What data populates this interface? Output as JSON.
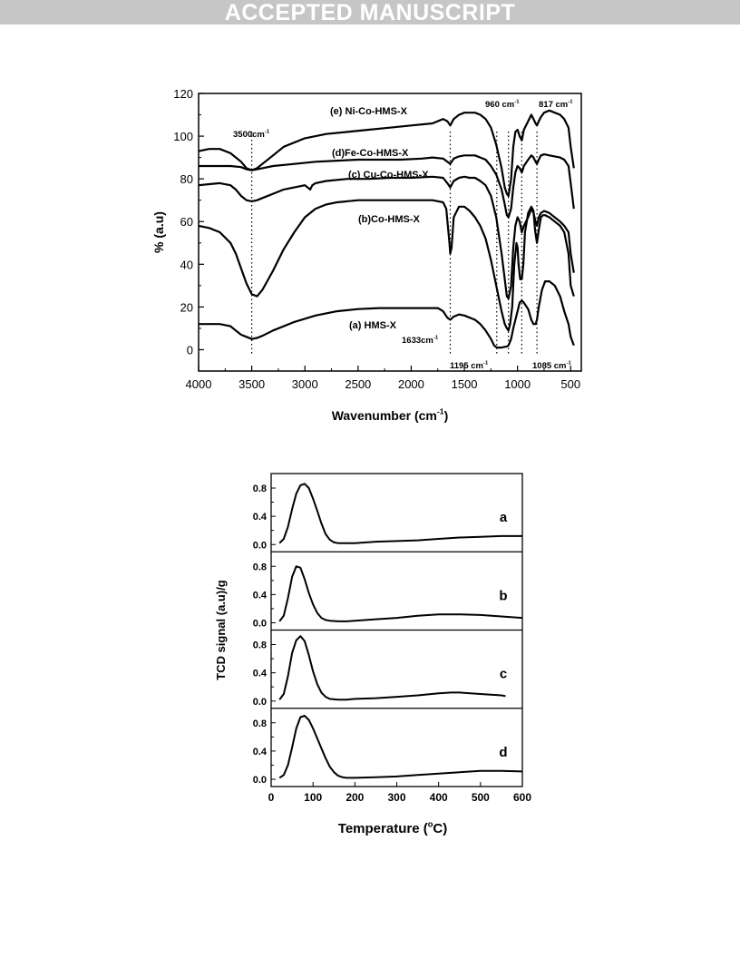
{
  "header": {
    "banner": "ACCEPTED MANUSCRIPT"
  },
  "chart_data": [
    {
      "type": "line",
      "xlabel": "Wavenumber (cm",
      "xlabel_sup": "-1",
      "xlabel_end": ")",
      "ylabel": "% (a.u)",
      "xlim": [
        4000,
        400
      ],
      "ylim": [
        -10,
        120
      ],
      "xticks": [
        4000,
        3500,
        3000,
        2500,
        2000,
        1500,
        1000,
        500
      ],
      "yticks": [
        0,
        20,
        40,
        60,
        80,
        100,
        120
      ],
      "grid": false,
      "series": [
        {
          "name": "(a) HMS-X",
          "x": [
            4000,
            3800,
            3700,
            3650,
            3600,
            3550,
            3500,
            3450,
            3400,
            3300,
            3100,
            2900,
            2700,
            2500,
            2300,
            2100,
            1900,
            1750,
            1700,
            1660,
            1633,
            1600,
            1550,
            1500,
            1400,
            1350,
            1300,
            1250,
            1220,
            1195,
            1150,
            1100,
            1085,
            1060,
            1040,
            1000,
            980,
            960,
            940,
            900,
            870,
            850,
            830,
            817,
            800,
            770,
            740,
            700,
            650,
            600,
            560,
            520,
            500,
            470
          ],
          "y": [
            12,
            12,
            11,
            9,
            7,
            6,
            5,
            5.5,
            6.5,
            9,
            13,
            16,
            18,
            19,
            19.5,
            19.5,
            19.5,
            19.5,
            18,
            15,
            14,
            15.5,
            16.5,
            16,
            14,
            12,
            9,
            5,
            2,
            1,
            1,
            1.5,
            2,
            5,
            10,
            18,
            22,
            23,
            22,
            19,
            14,
            12,
            12,
            14,
            20,
            28,
            32,
            32,
            30,
            25,
            18,
            12,
            6,
            2
          ]
        },
        {
          "name": "(b)Co-HMS-X",
          "x": [
            4000,
            3900,
            3800,
            3700,
            3650,
            3600,
            3550,
            3500,
            3450,
            3400,
            3300,
            3200,
            3100,
            3000,
            2900,
            2800,
            2700,
            2500,
            2300,
            2000,
            1800,
            1700,
            1670,
            1640,
            1633,
            1620,
            1600,
            1550,
            1500,
            1450,
            1400,
            1350,
            1300,
            1250,
            1200,
            1150,
            1120,
            1100,
            1085,
            1070,
            1050,
            1030,
            1010,
            1000,
            990,
            975,
            960,
            945,
            930,
            900,
            870,
            850,
            835,
            817,
            800,
            780,
            760,
            740,
            700,
            650,
            600,
            560,
            520,
            500,
            470
          ],
          "y": [
            58,
            57,
            55,
            50,
            45,
            38,
            31,
            26,
            25,
            28,
            37,
            47,
            55,
            62,
            66,
            68,
            69,
            70,
            70,
            70,
            70,
            69,
            66,
            50,
            45,
            48,
            62,
            67,
            67,
            65,
            62,
            58,
            52,
            42,
            30,
            18,
            12,
            10,
            9,
            12,
            20,
            40,
            50,
            48,
            40,
            33,
            33,
            40,
            55,
            64,
            67,
            65,
            56,
            50,
            56,
            62,
            63,
            63,
            62,
            60,
            58,
            55,
            45,
            30,
            25
          ]
        },
        {
          "name": "(c) Cu-Co-HMS-X",
          "x": [
            4000,
            3900,
            3800,
            3700,
            3650,
            3600,
            3550,
            3500,
            3450,
            3400,
            3300,
            3200,
            3000,
            2950,
            2930,
            2900,
            2800,
            2600,
            2400,
            2200,
            2000,
            1800,
            1700,
            1660,
            1633,
            1600,
            1550,
            1500,
            1450,
            1400,
            1350,
            1300,
            1250,
            1200,
            1150,
            1120,
            1100,
            1085,
            1060,
            1040,
            1020,
            1000,
            980,
            960,
            940,
            900,
            870,
            850,
            830,
            817,
            800,
            780,
            750,
            700,
            650,
            600,
            560,
            520,
            500,
            470
          ],
          "y": [
            77,
            77.5,
            78,
            77,
            75,
            72,
            70,
            69.5,
            70,
            71,
            73,
            75,
            77,
            75,
            77,
            78,
            79,
            80,
            80,
            80.5,
            80.5,
            81,
            80.5,
            78,
            76,
            79,
            80.5,
            81,
            80.5,
            80.5,
            79,
            77,
            72,
            62,
            45,
            33,
            25,
            24,
            30,
            48,
            58,
            62,
            60,
            55,
            58,
            62,
            66,
            64,
            60,
            58,
            62,
            64,
            65,
            64,
            62,
            60,
            58,
            55,
            45,
            36
          ]
        },
        {
          "name": "(d)Fe-Co-HMS-X",
          "x": [
            4000,
            3800,
            3700,
            3600,
            3550,
            3500,
            3450,
            3400,
            3300,
            3100,
            2900,
            2700,
            2500,
            2300,
            2100,
            1900,
            1800,
            1700,
            1660,
            1633,
            1600,
            1550,
            1500,
            1400,
            1350,
            1300,
            1250,
            1200,
            1150,
            1120,
            1100,
            1085,
            1060,
            1040,
            1020,
            1000,
            980,
            960,
            940,
            900,
            870,
            850,
            830,
            817,
            800,
            780,
            750,
            700,
            650,
            600,
            560,
            520,
            500,
            470
          ],
          "y": [
            86,
            86,
            86,
            85.5,
            84.5,
            84,
            84.5,
            85,
            86,
            87,
            88,
            88.5,
            89,
            89,
            89,
            89.5,
            90,
            89.5,
            88,
            87,
            89.5,
            90.5,
            91,
            91,
            90,
            89,
            86,
            82,
            75,
            68,
            63,
            62,
            66,
            76,
            83,
            86,
            85,
            83,
            86,
            89,
            91,
            90,
            88,
            87,
            89,
            91,
            91.5,
            91,
            90.5,
            90,
            89,
            86,
            78,
            66
          ]
        },
        {
          "name": "(e) Ni-Co-HMS-X",
          "x": [
            4000,
            3900,
            3800,
            3700,
            3600,
            3550,
            3500,
            3450,
            3400,
            3300,
            3200,
            3000,
            2800,
            2600,
            2400,
            2200,
            2000,
            1800,
            1700,
            1660,
            1633,
            1600,
            1550,
            1500,
            1400,
            1350,
            1300,
            1250,
            1200,
            1150,
            1120,
            1100,
            1085,
            1060,
            1040,
            1020,
            1000,
            980,
            960,
            940,
            900,
            870,
            850,
            830,
            817,
            800,
            780,
            750,
            700,
            650,
            600,
            560,
            520,
            500,
            470
          ],
          "y": [
            93,
            94,
            94,
            92,
            88,
            85,
            84,
            85,
            87,
            91,
            95,
            99,
            101,
            102,
            103,
            104,
            105,
            106,
            108,
            107,
            105,
            108,
            110,
            111,
            111,
            110,
            108,
            104,
            96,
            85,
            76,
            73,
            72,
            80,
            95,
            102,
            103,
            100,
            98,
            103,
            107,
            110,
            108,
            106,
            105,
            107,
            109,
            111,
            112,
            111,
            110,
            108,
            104,
            95,
            85
          ]
        }
      ],
      "annotations": [
        {
          "text": "3500cm",
          "sup": "-1"
        },
        {
          "text": "1633cm",
          "sup": "-1"
        },
        {
          "text": "1195 cm",
          "sup": "-1"
        },
        {
          "text": "1085 cm",
          "sup": "-1"
        },
        {
          "text": "960 cm",
          "sup": "-1"
        },
        {
          "text": "817 cm",
          "sup": "-1"
        }
      ],
      "marker_lines": [
        3500,
        1633,
        1195,
        1085,
        960,
        817
      ]
    },
    {
      "type": "line",
      "xlabel": "Temperature (",
      "xlabel_sup": "o",
      "xlabel_end": "C)",
      "ylabel": "TCD signal (a.u)/g",
      "xlim": [
        0,
        600
      ],
      "xticks": [
        0,
        100,
        200,
        300,
        400,
        500,
        600
      ],
      "panel_yticks": [
        "0.8",
        "0.4",
        "0.0"
      ],
      "panel_ytick_values": [
        0.8,
        0.4,
        0.0
      ],
      "grid": false,
      "panels": [
        {
          "label": "a",
          "x": [
            20,
            30,
            40,
            50,
            60,
            70,
            80,
            90,
            100,
            110,
            120,
            130,
            140,
            150,
            160,
            180,
            200,
            250,
            300,
            350,
            400,
            450,
            500,
            550,
            600
          ],
          "y": [
            0.02,
            0.08,
            0.25,
            0.5,
            0.72,
            0.84,
            0.86,
            0.8,
            0.65,
            0.48,
            0.3,
            0.15,
            0.07,
            0.03,
            0.02,
            0.02,
            0.02,
            0.04,
            0.05,
            0.06,
            0.08,
            0.1,
            0.11,
            0.12,
            0.12
          ]
        },
        {
          "label": "b",
          "x": [
            20,
            30,
            40,
            50,
            60,
            70,
            80,
            90,
            100,
            110,
            120,
            130,
            140,
            160,
            180,
            200,
            250,
            300,
            350,
            400,
            450,
            500,
            550,
            600
          ],
          "y": [
            0.02,
            0.1,
            0.35,
            0.65,
            0.8,
            0.78,
            0.62,
            0.42,
            0.26,
            0.14,
            0.07,
            0.04,
            0.03,
            0.02,
            0.02,
            0.03,
            0.05,
            0.07,
            0.1,
            0.12,
            0.12,
            0.11,
            0.09,
            0.07
          ]
        },
        {
          "label": "c",
          "x": [
            20,
            30,
            40,
            50,
            60,
            70,
            80,
            90,
            100,
            110,
            120,
            130,
            140,
            160,
            180,
            200,
            250,
            300,
            350,
            400,
            430,
            450,
            500,
            550,
            560
          ],
          "y": [
            0.02,
            0.1,
            0.35,
            0.68,
            0.86,
            0.92,
            0.85,
            0.65,
            0.42,
            0.24,
            0.12,
            0.06,
            0.03,
            0.02,
            0.02,
            0.03,
            0.04,
            0.06,
            0.08,
            0.11,
            0.12,
            0.12,
            0.1,
            0.08,
            0.07
          ]
        },
        {
          "label": "d",
          "x": [
            20,
            30,
            40,
            50,
            60,
            70,
            80,
            90,
            100,
            110,
            120,
            130,
            140,
            150,
            160,
            170,
            180,
            200,
            250,
            300,
            350,
            400,
            450,
            500,
            550,
            600
          ],
          "y": [
            0.02,
            0.06,
            0.2,
            0.45,
            0.72,
            0.88,
            0.9,
            0.84,
            0.72,
            0.58,
            0.44,
            0.3,
            0.18,
            0.1,
            0.05,
            0.03,
            0.02,
            0.02,
            0.03,
            0.04,
            0.06,
            0.08,
            0.1,
            0.12,
            0.12,
            0.11
          ]
        }
      ]
    }
  ]
}
